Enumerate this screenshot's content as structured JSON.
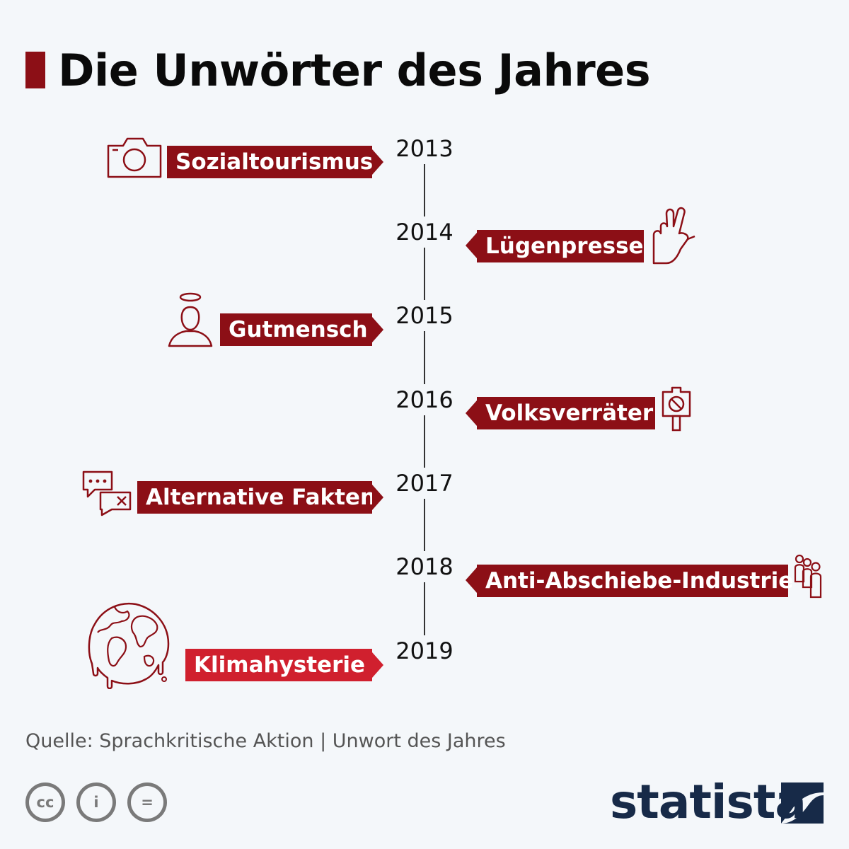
{
  "title": "Die Unwörter des Jahres",
  "entries": [
    {
      "year": "2013",
      "word": "Sozialtourismus",
      "icon": "camera-icon"
    },
    {
      "year": "2014",
      "word": "Lügenpresse",
      "icon": "crossed-fingers-icon"
    },
    {
      "year": "2015",
      "word": "Gutmensch",
      "icon": "halo-person-icon"
    },
    {
      "year": "2016",
      "word": "Volksverräter",
      "icon": "protest-sign-icon"
    },
    {
      "year": "2017",
      "word": "Alternative Fakten",
      "icon": "speech-bubbles-icon"
    },
    {
      "year": "2018",
      "word": "Anti-Abschiebe-Industrie",
      "icon": "people-queue-icon"
    },
    {
      "year": "2019",
      "word": "Klimahysterie",
      "icon": "melting-globe-icon"
    }
  ],
  "source": "Quelle: Sprachkritische Aktion | Unwort des Jahres",
  "license_icons": [
    "cc",
    "i",
    "="
  ],
  "brand": "statista",
  "colors": {
    "accent": "#8c0f16",
    "highlight": "#d0202e",
    "brand": "#172a48",
    "background": "#f4f7fa"
  }
}
